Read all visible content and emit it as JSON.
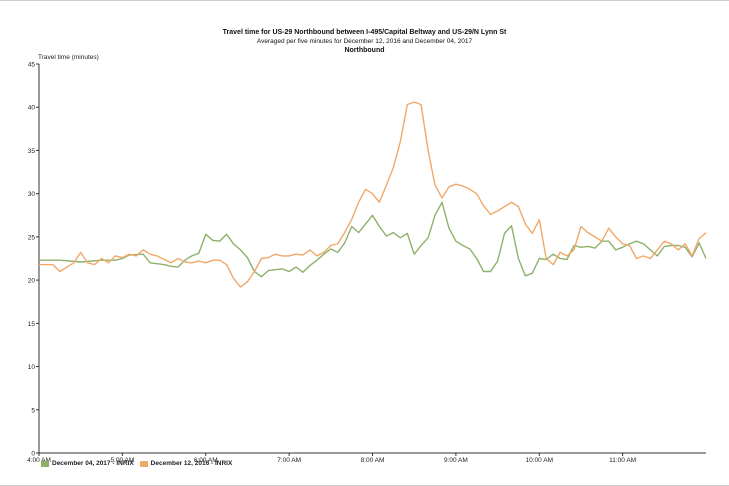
{
  "chart_data": {
    "type": "line",
    "title": "Travel time for US-29  Northbound between I-495/Capital Beltway and US-29/N Lynn St",
    "subtitle": "Averaged per five minutes for December 12, 2016 and December 04, 2017",
    "direction_label": "Northbound",
    "ylabel": "Travel time (minutes)",
    "xlabel": "",
    "ylim": [
      0,
      45
    ],
    "y_ticks": [
      "0",
      "5",
      "10",
      "15",
      "20",
      "25",
      "30",
      "35",
      "40",
      "45"
    ],
    "x_range_hours": [
      4.0,
      12.0
    ],
    "x_ticks": [
      {
        "label": "4:00 AM",
        "hour": 4
      },
      {
        "label": "5:00 AM",
        "hour": 5
      },
      {
        "label": "6:00 AM",
        "hour": 6
      },
      {
        "label": "7:00 AM",
        "hour": 7
      },
      {
        "label": "8:00 AM",
        "hour": 8
      },
      {
        "label": "9:00 AM",
        "hour": 9
      },
      {
        "label": "10:00 AM",
        "hour": 10
      },
      {
        "label": "11:00 AM",
        "hour": 11
      }
    ],
    "grid": false,
    "legend_position": "bottom-left",
    "series": [
      {
        "name": "December 04, 2017 - INRIX",
        "color": "#8db16b",
        "x": [
          4.0,
          4.25,
          4.5,
          4.75,
          4.917,
          5.0,
          5.083,
          5.25,
          5.333,
          5.5,
          5.583,
          5.667,
          5.75,
          5.833,
          5.917,
          6.0,
          6.083,
          6.167,
          6.25,
          6.333,
          6.417,
          6.5,
          6.583,
          6.667,
          6.75,
          6.833,
          6.917,
          7.0,
          7.083,
          7.167,
          7.25,
          7.333,
          7.417,
          7.5,
          7.583,
          7.667,
          7.75,
          7.833,
          7.917,
          8.0,
          8.083,
          8.167,
          8.25,
          8.333,
          8.417,
          8.5,
          8.583,
          8.667,
          8.75,
          8.833,
          8.917,
          9.0,
          9.083,
          9.167,
          9.25,
          9.333,
          9.417,
          9.5,
          9.583,
          9.667,
          9.75,
          9.833,
          9.917,
          10.0,
          10.083,
          10.167,
          10.25,
          10.333,
          10.417,
          10.5,
          10.583,
          10.667,
          10.75,
          10.833,
          10.917,
          11.0,
          11.083,
          11.167,
          11.25,
          11.333,
          11.417,
          11.5,
          11.583,
          11.667,
          11.75,
          11.833,
          11.917,
          12.0
        ],
        "values": [
          22.3,
          22.3,
          22.1,
          22.3,
          22.3,
          22.5,
          22.9,
          23.0,
          22.0,
          21.8,
          21.6,
          21.5,
          22.3,
          22.8,
          23.1,
          25.3,
          24.6,
          24.5,
          25.3,
          24.2,
          23.5,
          22.6,
          21.0,
          20.4,
          21.1,
          21.2,
          21.3,
          21.0,
          21.5,
          20.9,
          21.7,
          22.3,
          23.0,
          23.6,
          23.2,
          24.3,
          26.2,
          25.5,
          26.5,
          27.5,
          26.2,
          25.1,
          25.5,
          24.9,
          25.4,
          23.0,
          24.0,
          24.9,
          27.5,
          29.0,
          26.0,
          24.5,
          24.0,
          23.6,
          22.5,
          21.0,
          21.0,
          22.2,
          25.4,
          26.3,
          22.5,
          20.5,
          20.8,
          22.5,
          22.4,
          23.0,
          22.5,
          22.4,
          24.0,
          23.8,
          23.9,
          23.7,
          24.5,
          24.5,
          23.5,
          23.8,
          24.2,
          24.5,
          24.2,
          23.5,
          22.8,
          23.9,
          24.0,
          24.0,
          23.8,
          22.7,
          24.3,
          22.5
        ]
      },
      {
        "name": "December 12, 2016 - INRIX",
        "color": "#f0a86b",
        "x": [
          4.0,
          4.167,
          4.25,
          4.417,
          4.5,
          4.583,
          4.667,
          4.75,
          4.833,
          4.917,
          5.0,
          5.083,
          5.167,
          5.25,
          5.333,
          5.417,
          5.5,
          5.583,
          5.667,
          5.75,
          5.833,
          5.917,
          6.0,
          6.083,
          6.167,
          6.25,
          6.333,
          6.417,
          6.5,
          6.583,
          6.667,
          6.75,
          6.833,
          6.917,
          7.0,
          7.083,
          7.167,
          7.25,
          7.333,
          7.417,
          7.5,
          7.583,
          7.667,
          7.75,
          7.833,
          7.917,
          8.0,
          8.083,
          8.167,
          8.25,
          8.333,
          8.417,
          8.5,
          8.583,
          8.667,
          8.75,
          8.833,
          8.917,
          9.0,
          9.083,
          9.167,
          9.25,
          9.333,
          9.417,
          9.5,
          9.583,
          9.667,
          9.75,
          9.833,
          9.917,
          10.0,
          10.083,
          10.167,
          10.25,
          10.333,
          10.417,
          10.5,
          10.583,
          10.667,
          10.75,
          10.833,
          10.917,
          11.0,
          11.083,
          11.167,
          11.25,
          11.333,
          11.417,
          11.5,
          11.583,
          11.667,
          11.75,
          11.833,
          11.917,
          12.0
        ],
        "values": [
          21.8,
          21.8,
          21.0,
          22.0,
          23.2,
          22.0,
          21.8,
          22.5,
          22.0,
          22.8,
          22.6,
          23.0,
          22.8,
          23.5,
          23.0,
          22.8,
          22.4,
          22.0,
          22.5,
          22.1,
          22.0,
          22.2,
          22.0,
          22.3,
          22.3,
          21.8,
          20.2,
          19.2,
          19.8,
          21.0,
          22.5,
          22.6,
          23.0,
          22.8,
          22.8,
          23.0,
          22.9,
          23.5,
          22.8,
          23.2,
          24.0,
          24.2,
          25.5,
          27.0,
          29.0,
          30.5,
          30.0,
          29.0,
          31.0,
          33.0,
          36.0,
          40.3,
          40.6,
          40.3,
          35.0,
          31.0,
          29.5,
          30.8,
          31.1,
          30.9,
          30.5,
          30.0,
          28.6,
          27.6,
          28.0,
          28.5,
          29.0,
          28.5,
          26.5,
          25.4,
          27.0,
          22.5,
          21.8,
          23.2,
          22.8,
          23.5,
          26.2,
          25.5,
          25.0,
          24.5,
          26.0,
          25.0,
          24.2,
          24.0,
          22.5,
          22.8,
          22.5,
          23.5,
          24.5,
          24.2,
          23.5,
          24.2,
          22.8,
          24.8,
          25.5
        ]
      }
    ]
  }
}
